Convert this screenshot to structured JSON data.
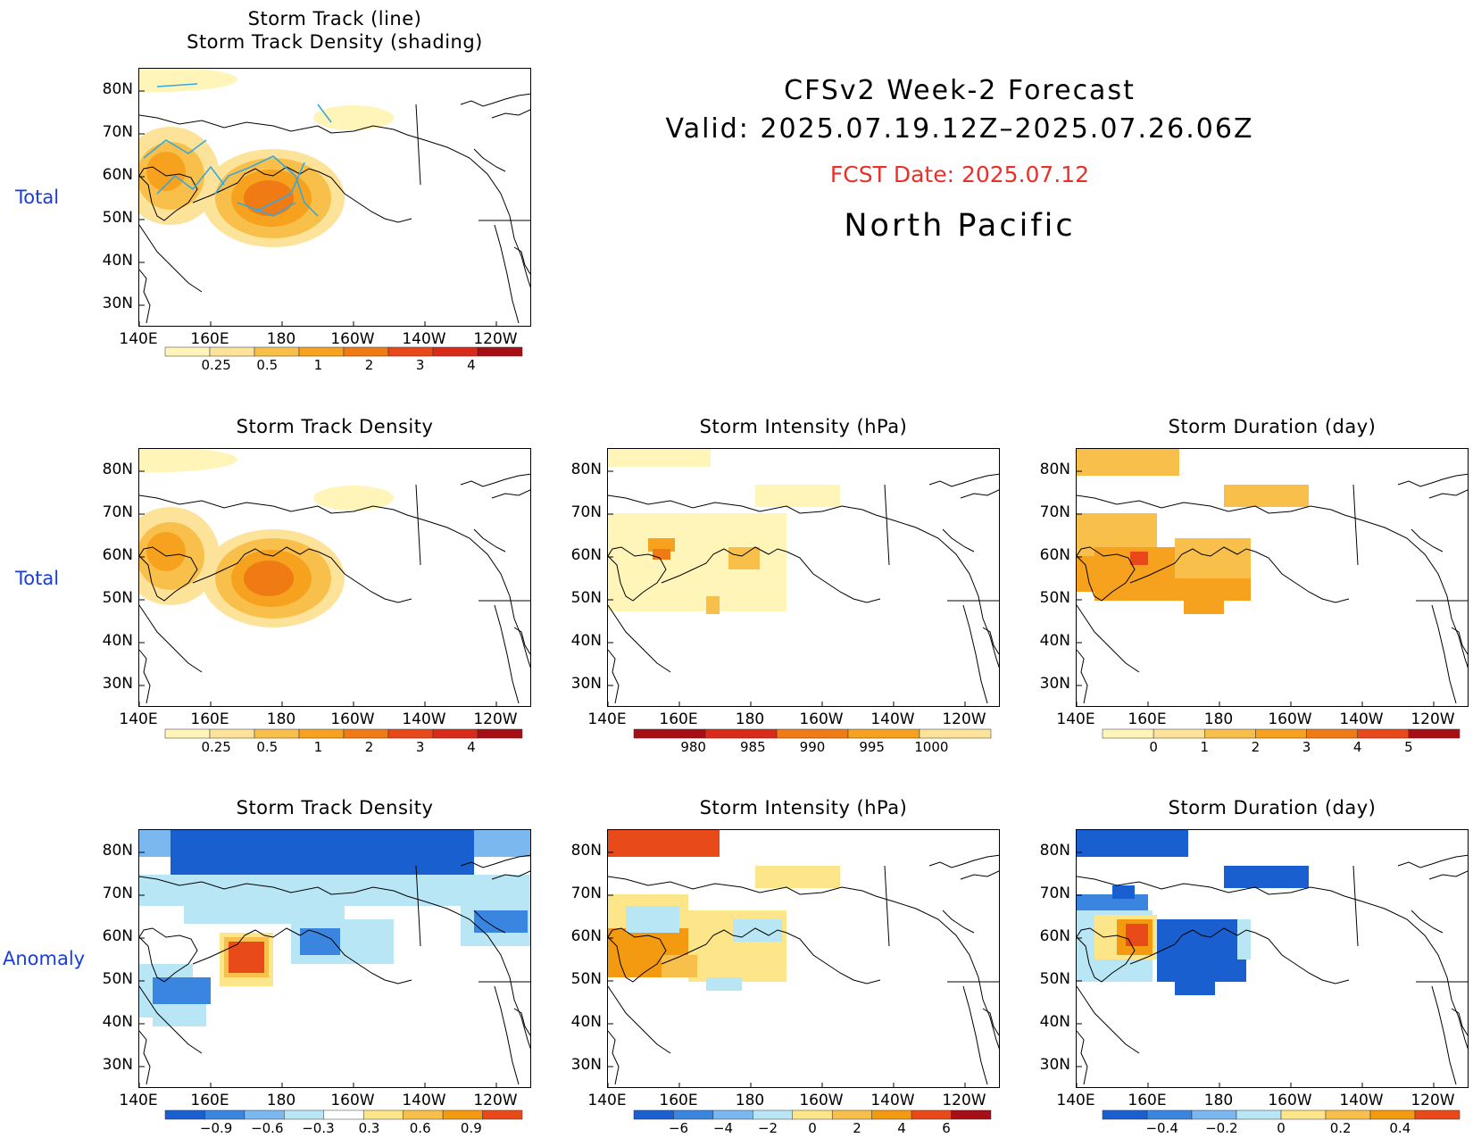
{
  "header": {
    "title_line1": "CFSv2 Week-2 Forecast",
    "title_line2": "Valid: 2025.07.19.12Z–2025.07.26.06Z",
    "fcst_date": "FCST Date: 2025.07.12",
    "region": "North Pacific"
  },
  "row_labels": {
    "row1": "Total",
    "row2": "Total",
    "row3": "Anomaly"
  },
  "axes": {
    "lat_ticks": [
      "80N",
      "70N",
      "60N",
      "50N",
      "40N",
      "30N"
    ],
    "lon_ticks": [
      "140E",
      "160E",
      "180",
      "160W",
      "140W",
      "120W"
    ]
  },
  "panels": {
    "p1": {
      "title": "Storm Track (line)\nStorm Track Density (shading)"
    },
    "p2": {
      "title": "Storm Track Density"
    },
    "p3": {
      "title": "Storm Intensity (hPa)"
    },
    "p4": {
      "title": "Storm Duration (day)"
    },
    "p5": {
      "title": "Storm Track Density"
    },
    "p6": {
      "title": "Storm Intensity (hPa)"
    },
    "p7": {
      "title": "Storm Duration (day)"
    }
  },
  "colorbars": {
    "density": {
      "labels": [
        "0.25",
        "0.5",
        "1",
        "2",
        "3",
        "4"
      ],
      "colors": [
        "#fff5b8",
        "#fde39a",
        "#f8c04a",
        "#f6a21e",
        "#f07a14",
        "#e8481a",
        "#d92a1a",
        "#a50f15"
      ]
    },
    "intensity": {
      "labels": [
        "980",
        "985",
        "990",
        "995",
        "1000"
      ],
      "colors": [
        "#a50f15",
        "#d92a1a",
        "#f07a14",
        "#f6a21e",
        "#fde39a"
      ]
    },
    "duration": {
      "labels": [
        "0",
        "1",
        "2",
        "3",
        "4",
        "5"
      ],
      "colors": [
        "#fff5b8",
        "#fde39a",
        "#f8c04a",
        "#f6a21e",
        "#f07a14",
        "#e8481a",
        "#a50f15"
      ]
    },
    "density_anom": {
      "labels": [
        "−0.9",
        "−0.6",
        "−0.3",
        "0.3",
        "0.6",
        "0.9"
      ],
      "colors": [
        "#1a5fd0",
        "#3a85e0",
        "#7ab8ef",
        "#b8e6f5",
        "#ffffff",
        "#fde68a",
        "#f8c04a",
        "#f49a10",
        "#e84a1a"
      ]
    },
    "intensity_anom": {
      "labels": [
        "−6",
        "−4",
        "−2",
        "0",
        "2",
        "4",
        "6"
      ],
      "colors": [
        "#1a5fd0",
        "#3a85e0",
        "#7ab8ef",
        "#b8e6f5",
        "#fde68a",
        "#f8c04a",
        "#f49a10",
        "#e84a1a",
        "#a50f15"
      ]
    },
    "duration_anom": {
      "labels": [
        "−0.4",
        "−0.2",
        "0",
        "0.2",
        "0.4"
      ],
      "colors": [
        "#1a5fd0",
        "#3a85e0",
        "#7ab8ef",
        "#b8e6f5",
        "#fde68a",
        "#f8c04a",
        "#f49a10",
        "#e84a1a"
      ]
    }
  },
  "colors": {
    "row_label": "#1a3ddb",
    "fcst_date": "#e8312a",
    "track_line": "#35a8e0",
    "land_outline": "#000000"
  }
}
